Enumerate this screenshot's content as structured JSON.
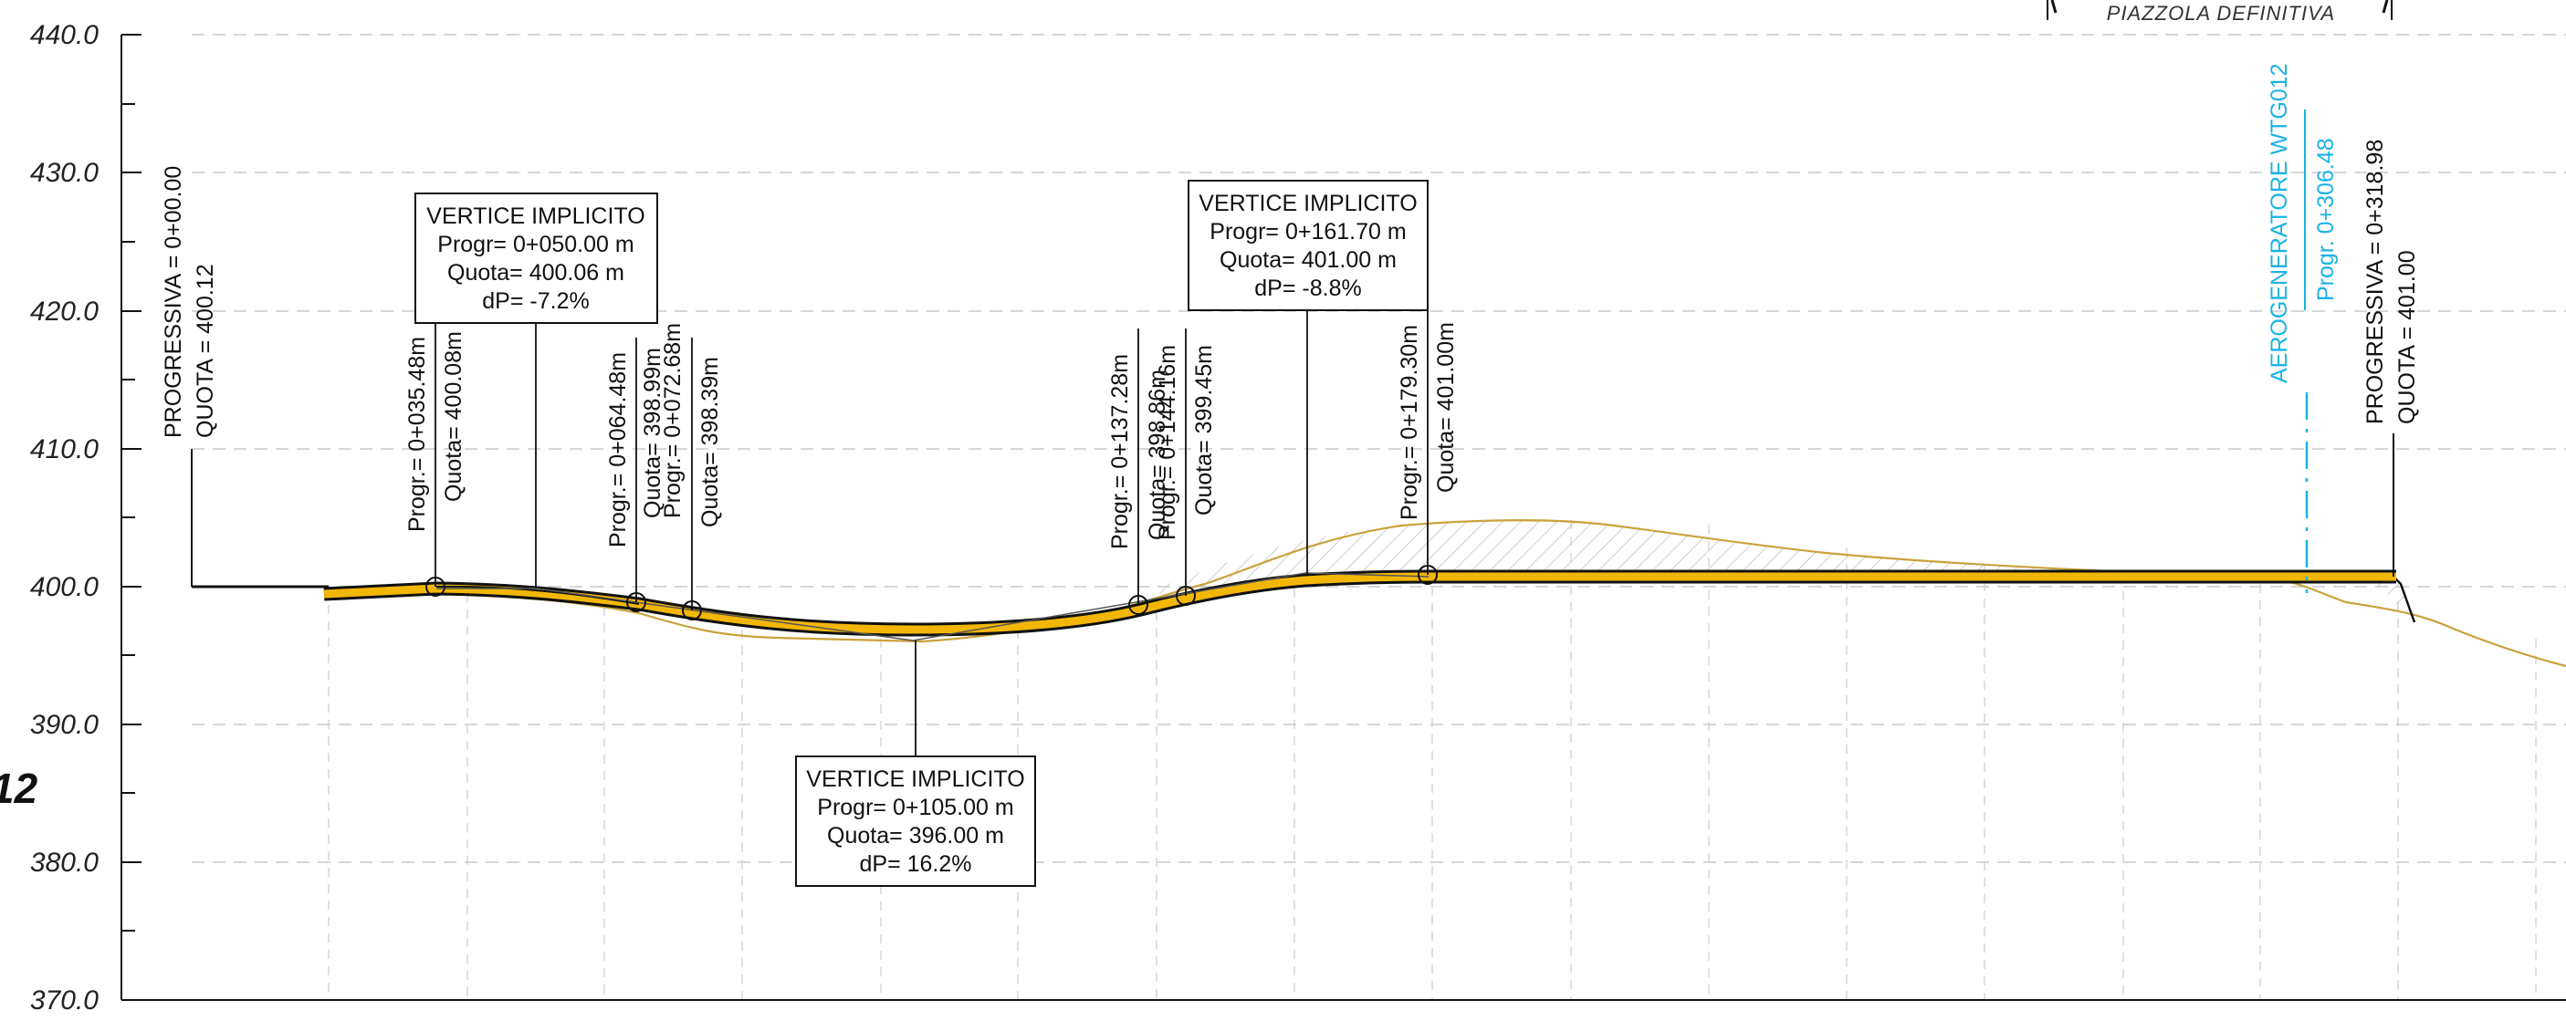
{
  "header": {
    "label": "PIAZZOLA DEFINITIVA"
  },
  "side_label": "12",
  "axis": {
    "y_ticks": [
      "440.0",
      "430.0",
      "420.0",
      "410.0",
      "400.0",
      "390.0",
      "380.0",
      "370.0"
    ]
  },
  "start_marker": {
    "progr": "PROGRESSIVA = 0+00.00",
    "quota": "QUOTA = 400.12"
  },
  "end_marker": {
    "progr": "PROGRESSIVA = 0+318.98",
    "quota": "QUOTA = 401.00"
  },
  "turbine_marker": {
    "name": "AEROGENERATORE WTG012",
    "progr": "Progr. 0+306.48"
  },
  "vertices": [
    {
      "title": "VERTICE IMPLICITO",
      "progr": "Progr= 0+050.00 m",
      "quota": "Quota= 400.06 m",
      "dp": "dP= -7.2%"
    },
    {
      "title": "VERTICE IMPLICITO",
      "progr": "Progr= 0+161.70 m",
      "quota": "Quota= 401.00 m",
      "dp": "dP= -8.8%"
    },
    {
      "title": "VERTICE IMPLICITO",
      "progr": "Progr= 0+105.00 m",
      "quota": "Quota= 396.00 m",
      "dp": "dP= 16.2%"
    }
  ],
  "tangent_points": [
    {
      "progr": "Progr.= 0+035.48m",
      "quota": "Quota= 400.08m"
    },
    {
      "progr": "Progr.= 0+064.48m",
      "quota": "Quota= 398.99m"
    },
    {
      "progr": "Progr.= 0+072.68m",
      "quota": "Quota= 398.39m"
    },
    {
      "progr": "Progr.= 0+137.28m",
      "quota": "Quota= 398.86m"
    },
    {
      "progr": "Progr.= 0+144.16m",
      "quota": "Quota= 399.45m"
    },
    {
      "progr": "Progr.= 0+179.30m",
      "quota": "Quota= 401.00m"
    }
  ],
  "colors": {
    "road": "#f2b705",
    "ground": "#c9a23a",
    "turbine": "#19b3e6",
    "hatch": "#b5b5b5"
  }
}
